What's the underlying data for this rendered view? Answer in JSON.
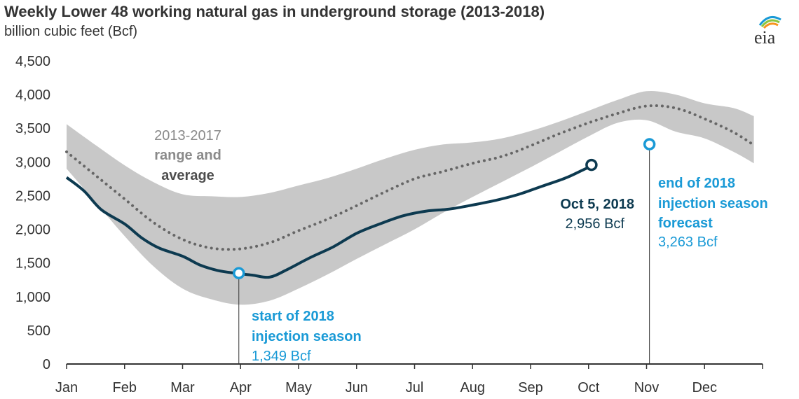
{
  "header": {
    "title": "Weekly Lower 48 working natural gas in underground storage (2013-2018)",
    "subtitle": "billion cubic feet (Bcf)",
    "logo_text": "eia"
  },
  "colors": {
    "range_fill": "#c8c8c8",
    "average_line": "#666666",
    "series_2018": "#0d3a50",
    "highlight": "#1a9ad6",
    "axis": "#333333"
  },
  "chart_data": {
    "type": "area",
    "title": "Weekly Lower 48 working natural gas in underground storage (2013-2018)",
    "ylabel": "billion cubic feet (Bcf)",
    "ylim": [
      0,
      4500
    ],
    "yticks": [
      0,
      500,
      1000,
      1500,
      2000,
      2500,
      3000,
      3500,
      4000,
      4500
    ],
    "ytick_labels": [
      "0",
      "500",
      "1,000",
      "1,500",
      "2,000",
      "2,500",
      "3,000",
      "3,500",
      "4,000",
      "4,500"
    ],
    "xlim": [
      0,
      12
    ],
    "months": [
      "Jan",
      "Feb",
      "Mar",
      "Apr",
      "May",
      "Jun",
      "Jul",
      "Aug",
      "Sep",
      "Oct",
      "Nov",
      "Dec"
    ],
    "grid": false,
    "range_2013_2017": {
      "x": [
        0,
        0.5,
        1,
        1.5,
        2,
        2.5,
        3,
        3.5,
        4,
        4.5,
        5,
        5.5,
        6,
        6.5,
        7,
        7.5,
        8,
        8.5,
        9,
        9.5,
        10,
        10.5,
        11,
        11.5,
        11.85
      ],
      "high": [
        3560,
        3250,
        2950,
        2700,
        2520,
        2490,
        2480,
        2540,
        2650,
        2760,
        2900,
        3050,
        3180,
        3260,
        3290,
        3350,
        3460,
        3600,
        3760,
        3920,
        4050,
        4000,
        3870,
        3800,
        3680
      ],
      "low": [
        2900,
        2400,
        1900,
        1450,
        1120,
        960,
        880,
        940,
        1120,
        1330,
        1560,
        1780,
        2000,
        2250,
        2480,
        2700,
        2920,
        3150,
        3380,
        3580,
        3620,
        3450,
        3350,
        3150,
        2980
      ]
    },
    "average_2013_2017": {
      "x": [
        0,
        0.5,
        1,
        1.5,
        2,
        2.5,
        3,
        3.5,
        4,
        4.5,
        5,
        5.5,
        6,
        6.5,
        7,
        7.5,
        8,
        8.5,
        9,
        9.5,
        10,
        10.5,
        11,
        11.5,
        11.85
      ],
      "values": [
        3150,
        2800,
        2450,
        2100,
        1850,
        1720,
        1710,
        1800,
        1980,
        2150,
        2350,
        2560,
        2750,
        2860,
        2980,
        3080,
        3240,
        3420,
        3580,
        3720,
        3830,
        3800,
        3640,
        3440,
        3250
      ]
    },
    "series_2018": {
      "x": [
        0,
        0.3,
        0.6,
        1,
        1.3,
        1.6,
        2,
        2.3,
        2.6,
        2.9,
        3.2,
        3.5,
        3.8,
        4.2,
        4.6,
        5,
        5.4,
        5.8,
        6.2,
        6.6,
        7,
        7.4,
        7.8,
        8.2,
        8.6,
        8.9,
        9.1
      ],
      "values": [
        2770,
        2570,
        2290,
        2080,
        1870,
        1720,
        1600,
        1470,
        1390,
        1349,
        1320,
        1290,
        1400,
        1580,
        1740,
        1940,
        2080,
        2200,
        2270,
        2300,
        2360,
        2430,
        2520,
        2640,
        2760,
        2880,
        2956
      ]
    },
    "points": [
      {
        "id": "start_2018",
        "x": 2.97,
        "y": 1349
      },
      {
        "id": "oct5_2018",
        "x": 9.05,
        "y": 2956
      },
      {
        "id": "end_forecast",
        "x": 10.05,
        "y": 3263
      }
    ],
    "annotations": {
      "range_label_line1": "2013-2017",
      "range_label_line2": "range and",
      "range_label_line3": "average",
      "oct5_line1": "Oct 5, 2018",
      "oct5_line2": "2,956 Bcf",
      "start_line1": "start of 2018",
      "start_line2": "injection season",
      "start_line3": "1,349 Bcf",
      "end_line1": "end of 2018",
      "end_line2": "injection season",
      "end_line3": "forecast",
      "end_line4": "3,263 Bcf"
    }
  }
}
